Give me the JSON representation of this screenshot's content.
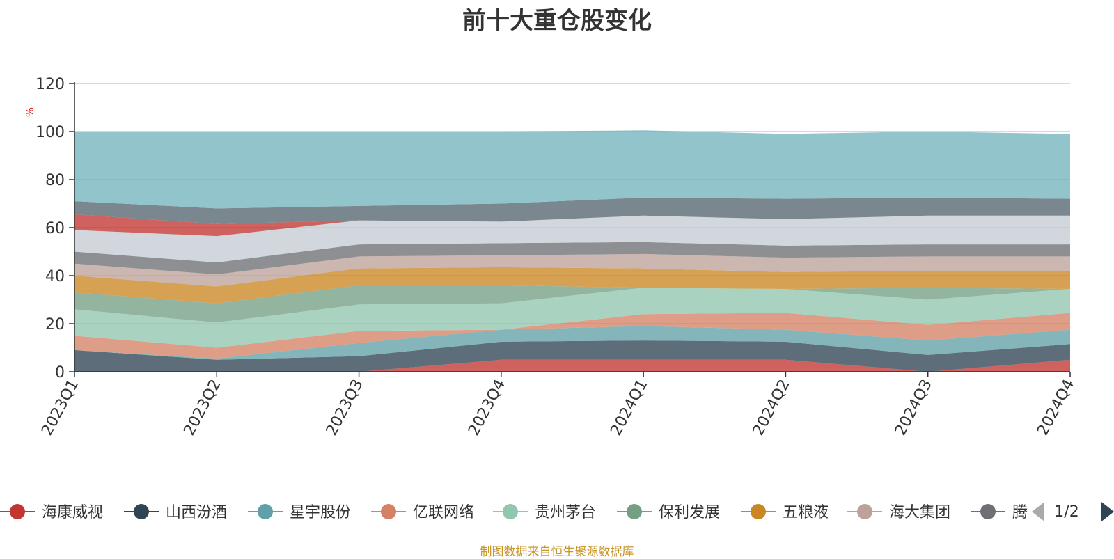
{
  "title": "前十大重仓股变化",
  "source_note": "制图数据来自恒生聚源数据库",
  "legend_page": "1/2",
  "colors": {
    "海康威视": "#c23531",
    "山西汾酒": "#2f4554",
    "星宇股份": "#61a0a8",
    "亿联网络": "#d48265",
    "贵州茅台": "#91c7ae",
    "保利发展": "#749f83",
    "五粮液": "#ca8622",
    "海大集团": "#bda29a",
    "腾讯控股": "#6e7074",
    "其他": "#546570",
    "top": "#c4ccd3",
    "remainder": "#72b3bc"
  },
  "chart_data": {
    "type": "area",
    "stacked": true,
    "ylabel": "%",
    "ylim": [
      0,
      120
    ],
    "yticks": [
      0,
      20,
      40,
      60,
      80,
      100,
      120
    ],
    "grid": true,
    "legend_position": "bottom",
    "categories": [
      "2023Q1",
      "2023Q2",
      "2023Q3",
      "2023Q4",
      "2024Q1",
      "2024Q2",
      "2024Q3",
      "2024Q4"
    ],
    "legend_items": [
      "海康威视",
      "山西汾酒",
      "星宇股份",
      "亿联网络",
      "贵州茅台",
      "保利发展",
      "五粮液",
      "海大集团",
      "腾讯控股"
    ],
    "series": [
      {
        "color_key": "海康威视",
        "values": [
          0,
          0,
          0,
          5,
          5,
          5,
          0,
          5
        ]
      },
      {
        "color_key": "山西汾酒",
        "values": [
          9,
          5,
          6.5,
          7.5,
          8,
          7.5,
          7,
          6.5
        ]
      },
      {
        "color_key": "星宇股份",
        "values": [
          0,
          0.5,
          5.5,
          5,
          6,
          5,
          6,
          6
        ]
      },
      {
        "color_key": "亿联网络",
        "values": [
          6,
          4.5,
          5,
          0,
          5,
          7,
          6.5,
          7
        ]
      },
      {
        "color_key": "贵州茅台",
        "values": [
          11,
          10.5,
          11,
          11,
          11,
          10,
          10.5,
          10
        ]
      },
      {
        "color_key": "保利发展",
        "values": [
          7,
          8,
          8,
          7.5,
          0,
          0,
          5,
          0
        ]
      },
      {
        "color_key": "五粮液",
        "values": [
          7,
          7,
          7,
          7.5,
          8,
          7,
          7,
          7.5
        ]
      },
      {
        "color_key": "海大集团",
        "values": [
          5,
          5,
          5,
          5,
          6,
          6,
          6,
          6
        ]
      },
      {
        "color_key": "腾讯控股",
        "values": [
          5,
          5,
          5,
          5,
          5,
          5,
          5,
          5
        ]
      },
      {
        "color_key": "top",
        "values": [
          9,
          11,
          10,
          9,
          11,
          11,
          12,
          12
        ]
      },
      {
        "color_key": "海康威视",
        "values": [
          6.5,
          5,
          0,
          0,
          0,
          0,
          0,
          0
        ]
      },
      {
        "color_key": "其他",
        "values": [
          5.5,
          6.5,
          6,
          7.5,
          7.5,
          8.5,
          7.5,
          7
        ]
      },
      {
        "color_key": "remainder",
        "values": [
          29,
          32,
          31,
          30,
          28,
          27,
          27.5,
          27
        ]
      }
    ]
  }
}
